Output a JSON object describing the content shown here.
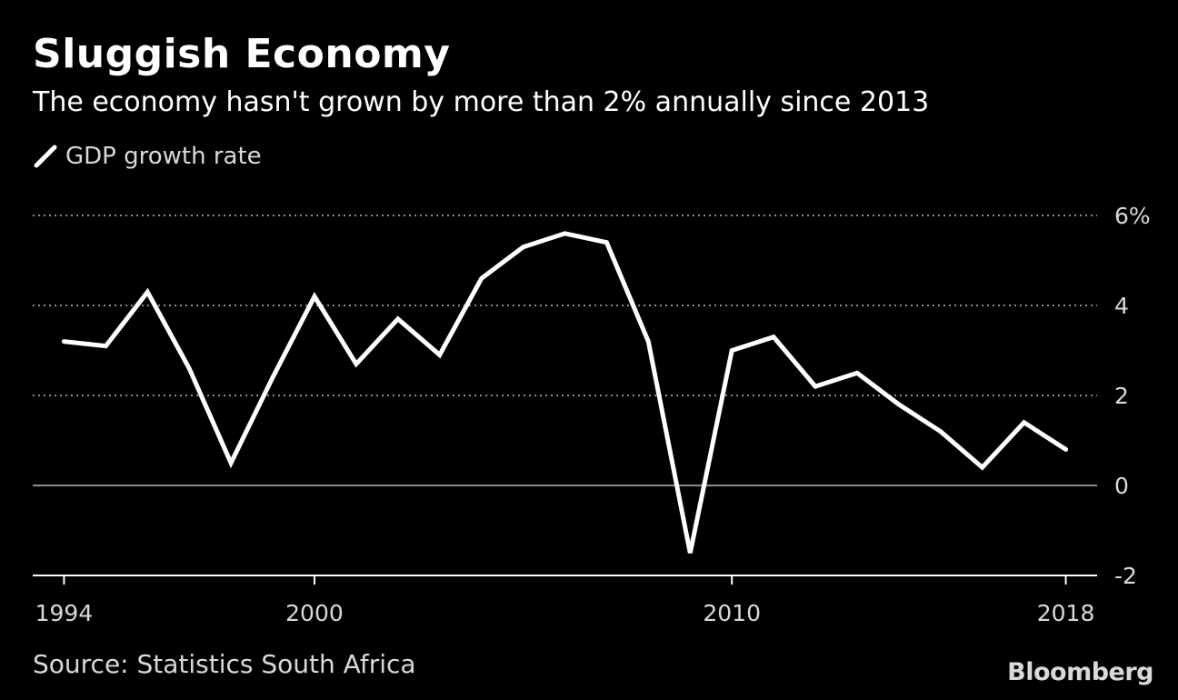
{
  "header": {
    "title": "Sluggish Economy",
    "subtitle": "The economy hasn't grown by more than 2% annually since 2013"
  },
  "footer": {
    "source": "Source: Statistics South Africa",
    "logo": "Bloomberg"
  },
  "colors": {
    "background": "#000000",
    "line": "#ffffff",
    "gridline": "#8c8c8c",
    "zero_line": "#8c8c8c",
    "text_muted": "#d9d9d9"
  },
  "chart_data": {
    "type": "line",
    "title": "Sluggish Economy",
    "subtitle": "The economy hasn't grown by more than 2% annually since 2013",
    "xlabel": "",
    "ylabel": "",
    "legend_position": "top-left",
    "series": [
      {
        "name": "GDP growth rate",
        "x": [
          1994,
          1995,
          1996,
          1997,
          1998,
          1999,
          2000,
          2001,
          2002,
          2003,
          2004,
          2005,
          2006,
          2007,
          2008,
          2009,
          2010,
          2011,
          2012,
          2013,
          2014,
          2015,
          2016,
          2017,
          2018
        ],
        "values": [
          3.2,
          3.1,
          4.3,
          2.6,
          0.5,
          2.4,
          4.2,
          2.7,
          3.7,
          2.9,
          4.6,
          5.3,
          5.6,
          5.4,
          3.2,
          -1.5,
          3.0,
          3.3,
          2.2,
          2.5,
          1.8,
          1.2,
          0.4,
          1.4,
          0.8
        ]
      }
    ],
    "xlim": [
      1993.25,
      2018.75
    ],
    "ylim": [
      -2,
      6
    ],
    "x_ticks": [
      1994,
      2000,
      2010,
      2018
    ],
    "x_tick_labels": [
      "1994",
      "2000",
      "2010",
      "2018"
    ],
    "y_ticks": [
      -2,
      0,
      2,
      4,
      6
    ],
    "y_tick_labels": [
      "-2",
      "0",
      "2",
      "4",
      "6%"
    ],
    "grid": true
  }
}
